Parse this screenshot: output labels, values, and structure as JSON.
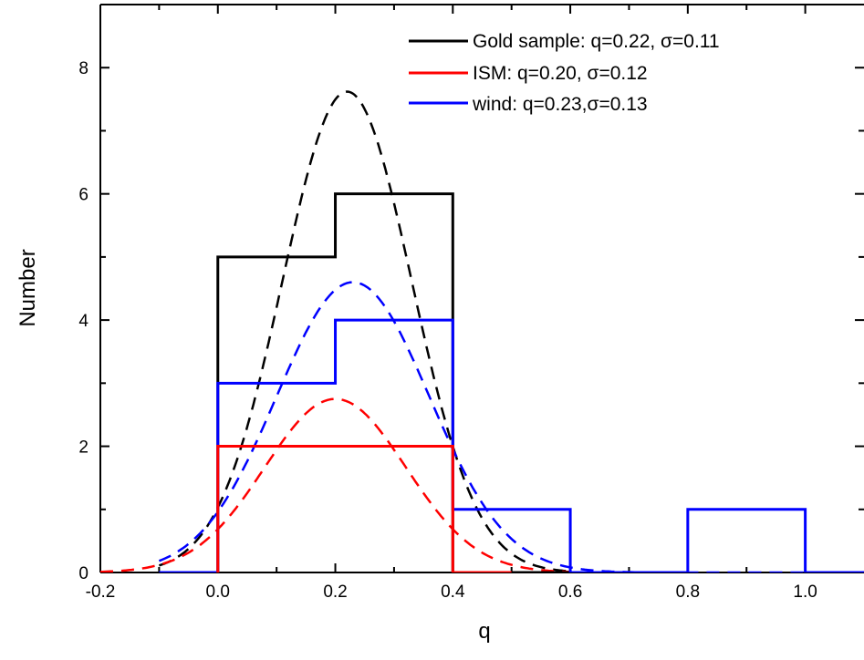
{
  "chart_data": {
    "type": "line",
    "xlabel": "q",
    "ylabel": "Number",
    "xlim": [
      -0.2,
      1.1
    ],
    "ylim": [
      0,
      9
    ],
    "x_ticks": [
      -0.2,
      0.0,
      0.2,
      0.4,
      0.6,
      0.8,
      1.0
    ],
    "x_tick_labels": [
      "-0.2",
      "0.0",
      "0.2",
      "0.4",
      "0.6",
      "0.8",
      "1.0"
    ],
    "y_ticks": [
      0,
      2,
      4,
      6,
      8
    ],
    "y_tick_labels": [
      "0",
      "2",
      "4",
      "6",
      "8"
    ],
    "grid": false,
    "legend_position": "top-right",
    "series": [
      {
        "name": "Gold sample: q=0.22, σ=0.11",
        "color": "#000000",
        "histogram": {
          "bin_edges": [
            -0.1,
            0.0,
            0.2,
            0.4,
            0.6
          ],
          "counts": [
            0,
            5,
            6,
            0
          ]
        },
        "gaussian_fit": {
          "mean": 0.22,
          "sigma": 0.11,
          "peak": 7.62,
          "x_range": [
            -0.1,
            0.6
          ]
        }
      },
      {
        "name": "ISM: q=0.20, σ=0.12",
        "color": "#ff0000",
        "histogram": {
          "bin_edges": [
            0.0,
            0.2,
            0.4,
            0.5
          ],
          "counts": [
            2,
            2,
            0
          ]
        },
        "gaussian_fit": {
          "mean": 0.2,
          "sigma": 0.12,
          "peak": 2.75,
          "x_range": [
            -0.2,
            0.6
          ]
        }
      },
      {
        "name": "wind: q=0.23,σ=0.13",
        "color": "#0000ff",
        "histogram": {
          "bin_edges": [
            -0.1,
            0.0,
            0.2,
            0.4,
            0.6,
            0.8,
            1.0,
            1.1
          ],
          "counts": [
            0,
            3,
            4,
            1,
            0,
            1,
            0
          ]
        },
        "gaussian_fit": {
          "mean": 0.23,
          "sigma": 0.13,
          "peak": 4.6,
          "x_range": [
            -0.1,
            1.1
          ]
        }
      }
    ]
  }
}
